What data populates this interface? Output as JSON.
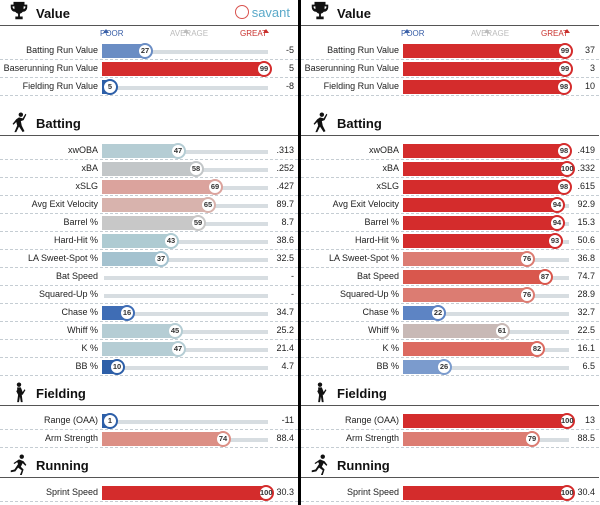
{
  "scale": {
    "poor": "POOR",
    "average": "AVERAGE",
    "great": "GREAT"
  },
  "brand": "savant",
  "panels": [
    {
      "sections": [
        {
          "title": "Value",
          "rows": [
            {
              "label": "Batting Run Value",
              "pct": 27,
              "value": "-5",
              "color": "#6a8dc4"
            },
            {
              "label": "Baserunning Run Value",
              "pct": 99,
              "value": "5",
              "color": "#d42c2c"
            },
            {
              "label": "Fielding Run Value",
              "pct": 5,
              "value": "-8",
              "color": "#2d5fa8"
            }
          ]
        },
        {
          "title": "Batting",
          "rows": [
            {
              "label": "xwOBA",
              "pct": 47,
              "value": ".313",
              "color": "#b5cdd4"
            },
            {
              "label": "xBA",
              "pct": 58,
              "value": ".252",
              "color": "#c2c6c8"
            },
            {
              "label": "xSLG",
              "pct": 69,
              "value": ".427",
              "color": "#dba39d"
            },
            {
              "label": "Avg Exit Velocity",
              "pct": 65,
              "value": "89.7",
              "color": "#d8b3ad"
            },
            {
              "label": "Barrel %",
              "pct": 59,
              "value": "8.7",
              "color": "#c8c8c8"
            },
            {
              "label": "Hard-Hit %",
              "pct": 43,
              "value": "38.6",
              "color": "#aecbd2"
            },
            {
              "label": "LA Sweet-Spot %",
              "pct": 37,
              "value": "32.5",
              "color": "#a4c2cf"
            },
            {
              "label": "Bat Speed",
              "pct": null,
              "value": "-",
              "color": "#ccc"
            },
            {
              "label": "Squared-Up %",
              "pct": null,
              "value": "-",
              "color": "#ccc"
            },
            {
              "label": "Chase %",
              "pct": 16,
              "value": "34.7",
              "color": "#3f6db5"
            },
            {
              "label": "Whiff %",
              "pct": 45,
              "value": "25.2",
              "color": "#b5cdd4"
            },
            {
              "label": "K %",
              "pct": 47,
              "value": "21.4",
              "color": "#b5cdd4"
            },
            {
              "label": "BB %",
              "pct": 10,
              "value": "4.7",
              "color": "#2d5fa8"
            }
          ]
        },
        {
          "title": "Fielding",
          "rows": [
            {
              "label": "Range (OAA)",
              "pct": 1,
              "value": "-11",
              "color": "#2d5fa8"
            },
            {
              "label": "Arm Strength",
              "pct": 74,
              "value": "88.4",
              "color": "#dc8f85"
            }
          ]
        },
        {
          "title": "Running",
          "rows": [
            {
              "label": "Sprint Speed",
              "pct": 100,
              "value": "30.3",
              "color": "#d42c2c"
            }
          ]
        }
      ]
    },
    {
      "sections": [
        {
          "title": "Value",
          "rows": [
            {
              "label": "Batting Run Value",
              "pct": 99,
              "value": "37",
              "color": "#d42c2c"
            },
            {
              "label": "Baserunning Run Value",
              "pct": 99,
              "value": "3",
              "color": "#d42c2c"
            },
            {
              "label": "Fielding Run Value",
              "pct": 98,
              "value": "10",
              "color": "#d42c2c"
            }
          ]
        },
        {
          "title": "Batting",
          "rows": [
            {
              "label": "xwOBA",
              "pct": 98,
              "value": ".419",
              "color": "#d42c2c"
            },
            {
              "label": "xBA",
              "pct": 100,
              "value": ".332",
              "color": "#d42c2c"
            },
            {
              "label": "xSLG",
              "pct": 98,
              "value": ".615",
              "color": "#d42c2c"
            },
            {
              "label": "Avg Exit Velocity",
              "pct": 94,
              "value": "92.9",
              "color": "#d42c2c"
            },
            {
              "label": "Barrel %",
              "pct": 94,
              "value": "15.3",
              "color": "#d42c2c"
            },
            {
              "label": "Hard-Hit %",
              "pct": 93,
              "value": "50.6",
              "color": "#d42c2c"
            },
            {
              "label": "LA Sweet-Spot %",
              "pct": 76,
              "value": "36.8",
              "color": "#dc7c72"
            },
            {
              "label": "Bat Speed",
              "pct": 87,
              "value": "74.7",
              "color": "#d9574d"
            },
            {
              "label": "Squared-Up %",
              "pct": 76,
              "value": "28.9",
              "color": "#dc7c72"
            },
            {
              "label": "Chase %",
              "pct": 22,
              "value": "32.7",
              "color": "#5d84c4"
            },
            {
              "label": "Whiff %",
              "pct": 61,
              "value": "22.5",
              "color": "#c8b9b6"
            },
            {
              "label": "K %",
              "pct": 82,
              "value": "16.1",
              "color": "#dc6a60"
            },
            {
              "label": "BB %",
              "pct": 26,
              "value": "6.5",
              "color": "#7b9bcd"
            }
          ]
        },
        {
          "title": "Fielding",
          "rows": [
            {
              "label": "Range (OAA)",
              "pct": 100,
              "value": "13",
              "color": "#d42c2c"
            },
            {
              "label": "Arm Strength",
              "pct": 79,
              "value": "88.5",
              "color": "#dc7c72"
            }
          ]
        },
        {
          "title": "Running",
          "rows": [
            {
              "label": "Sprint Speed",
              "pct": 100,
              "value": "30.4",
              "color": "#d42c2c"
            }
          ]
        }
      ]
    }
  ]
}
